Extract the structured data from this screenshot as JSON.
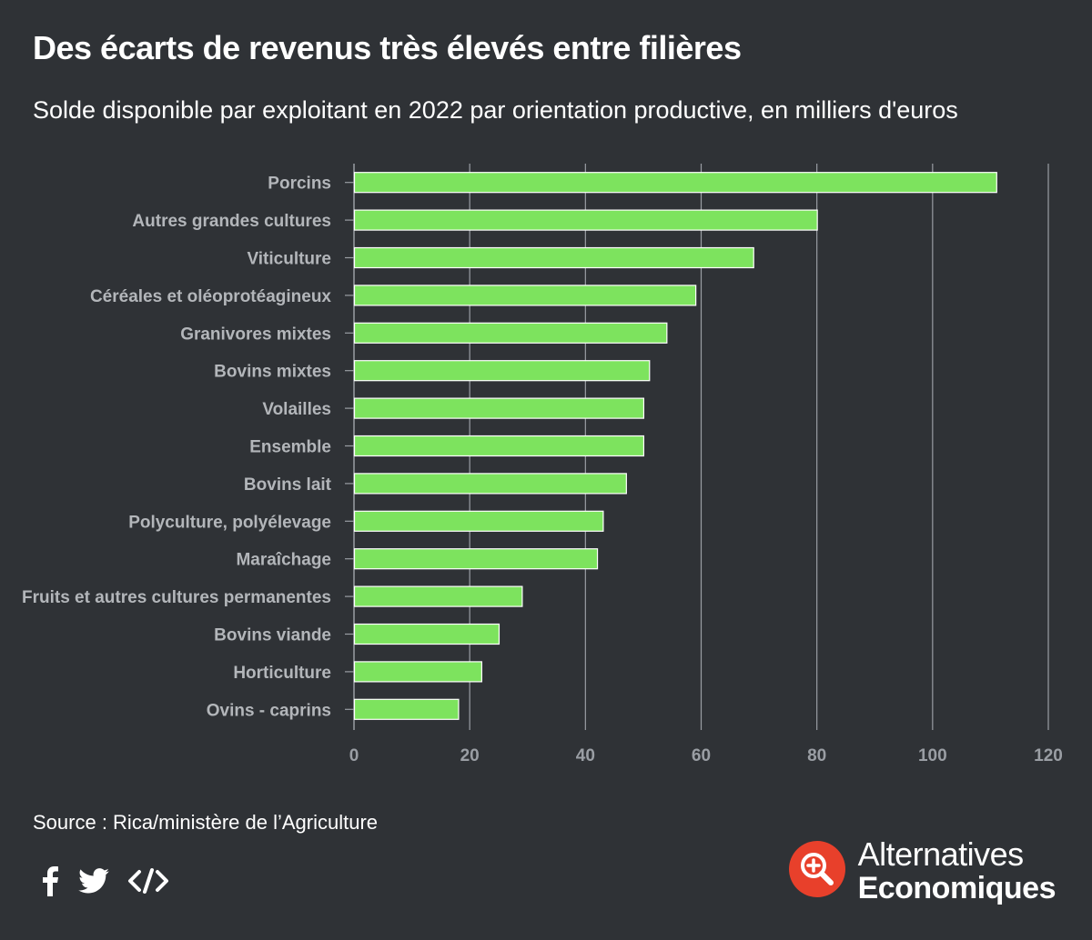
{
  "header": {
    "title": "Des écarts de revenus très élevés entre filières",
    "subtitle": "Solde disponible par exploitant en 2022 par orientation productive, en milliers d'euros"
  },
  "footer": {
    "source": "Source : Rica/ministère de l’Agriculture",
    "share_icons": [
      "facebook-icon",
      "twitter-icon",
      "embed-code-icon"
    ],
    "brand_line1": "Alternatives",
    "brand_line2": "Economiques",
    "brand_logo_icon": "magnifier-plus-icon"
  },
  "colors": {
    "background": "#2f3236",
    "bar": "#7de35e",
    "bar_stroke": "#ffffff",
    "grid": "#9a9ea4",
    "category_label": "#b3b6ba",
    "tick_label": "#9a9ea4",
    "brand_red": "#e8402b"
  },
  "chart_data": {
    "type": "bar",
    "orientation": "horizontal",
    "title": "Des écarts de revenus très élevés entre filières",
    "subtitle": "Solde disponible par exploitant en 2022 par orientation productive, en milliers d'euros",
    "categories": [
      "Porcins",
      "Autres grandes cultures",
      "Viticulture",
      "Céréales et oléoprotéagineux",
      "Granivores mixtes",
      "Bovins mixtes",
      "Volailles",
      "Ensemble",
      "Bovins lait",
      "Polyculture, polyélevage",
      "Maraîchage",
      "Fruits et autres cultures permanentes",
      "Bovins viande",
      "Horticulture",
      "Ovins - caprins"
    ],
    "values": [
      111,
      80,
      69,
      59,
      54,
      51,
      50,
      50,
      47,
      43,
      42,
      29,
      25,
      22,
      18
    ],
    "xlim": [
      0,
      120
    ],
    "xticks": [
      0,
      20,
      40,
      60,
      80,
      100,
      120
    ],
    "xtick_labels": [
      "0",
      "20",
      "40",
      "60",
      "80",
      "100",
      "120"
    ],
    "grid": true,
    "legend": false
  }
}
